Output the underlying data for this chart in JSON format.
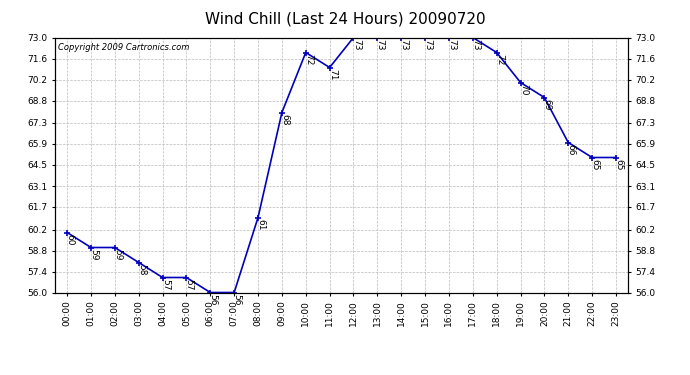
{
  "title": "Wind Chill (Last 24 Hours) 20090720",
  "copyright": "Copyright 2009 Cartronics.com",
  "hours": [
    0,
    1,
    2,
    3,
    4,
    5,
    6,
    7,
    8,
    9,
    10,
    11,
    12,
    13,
    14,
    15,
    16,
    17,
    18,
    19,
    20,
    21,
    22,
    23
  ],
  "values": [
    60,
    59,
    59,
    58,
    57,
    57,
    56,
    56,
    61,
    68,
    72,
    71,
    73,
    73,
    73,
    73,
    73,
    73,
    72,
    70,
    69,
    66,
    65,
    65
  ],
  "ylim": [
    56.0,
    73.0
  ],
  "yticks": [
    56.0,
    57.4,
    58.8,
    60.2,
    61.7,
    63.1,
    64.5,
    65.9,
    67.3,
    68.8,
    70.2,
    71.6,
    73.0
  ],
  "ytick_labels": [
    "56.0",
    "57.4",
    "58.8",
    "60.2",
    "61.7",
    "63.1",
    "64.5",
    "65.9",
    "67.3",
    "68.8",
    "70.2",
    "71.6",
    "73.0"
  ],
  "line_color": "#0000bb",
  "marker_color": "#0000bb",
  "grid_color": "#bbbbbb",
  "bg_color": "#ffffff",
  "plot_bg_color": "#ffffff",
  "title_fontsize": 11,
  "label_fontsize": 6.5,
  "annot_fontsize": 6.5,
  "copyright_fontsize": 6
}
